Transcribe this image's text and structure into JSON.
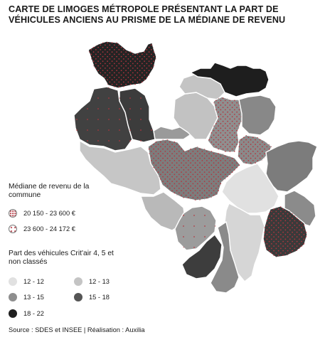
{
  "title": "CARTE DE LIMOGES MÉTROPOLE PRÉSENTANT LA PART DE VÉHICULES ANCIENS AU PRISME DE LA MÉDIANE DE REVENU",
  "legend_income": {
    "title": "Médiane de revenu de la commune",
    "items": [
      {
        "label": "20 150 - 23 600 €",
        "pattern": "dotted"
      },
      {
        "label": "23 600 - 24 172 €",
        "pattern": "sparse-dotted"
      }
    ]
  },
  "legend_share": {
    "title": "Part des véhicules Crit'air 4, 5 et non classés",
    "items": [
      {
        "label": "12 - 12",
        "color": "#e1e1e1"
      },
      {
        "label": "12 - 13",
        "color": "#c4c4c4"
      },
      {
        "label": "13 - 15",
        "color": "#8e8e8e"
      },
      {
        "label": "15 - 18",
        "color": "#555555"
      },
      {
        "label": "18 - 22",
        "color": "#1f1f1f"
      }
    ]
  },
  "dot_color": "#b3343e",
  "source": "Source : SDES et INSEE  |  Réalisation : Auxilia"
}
